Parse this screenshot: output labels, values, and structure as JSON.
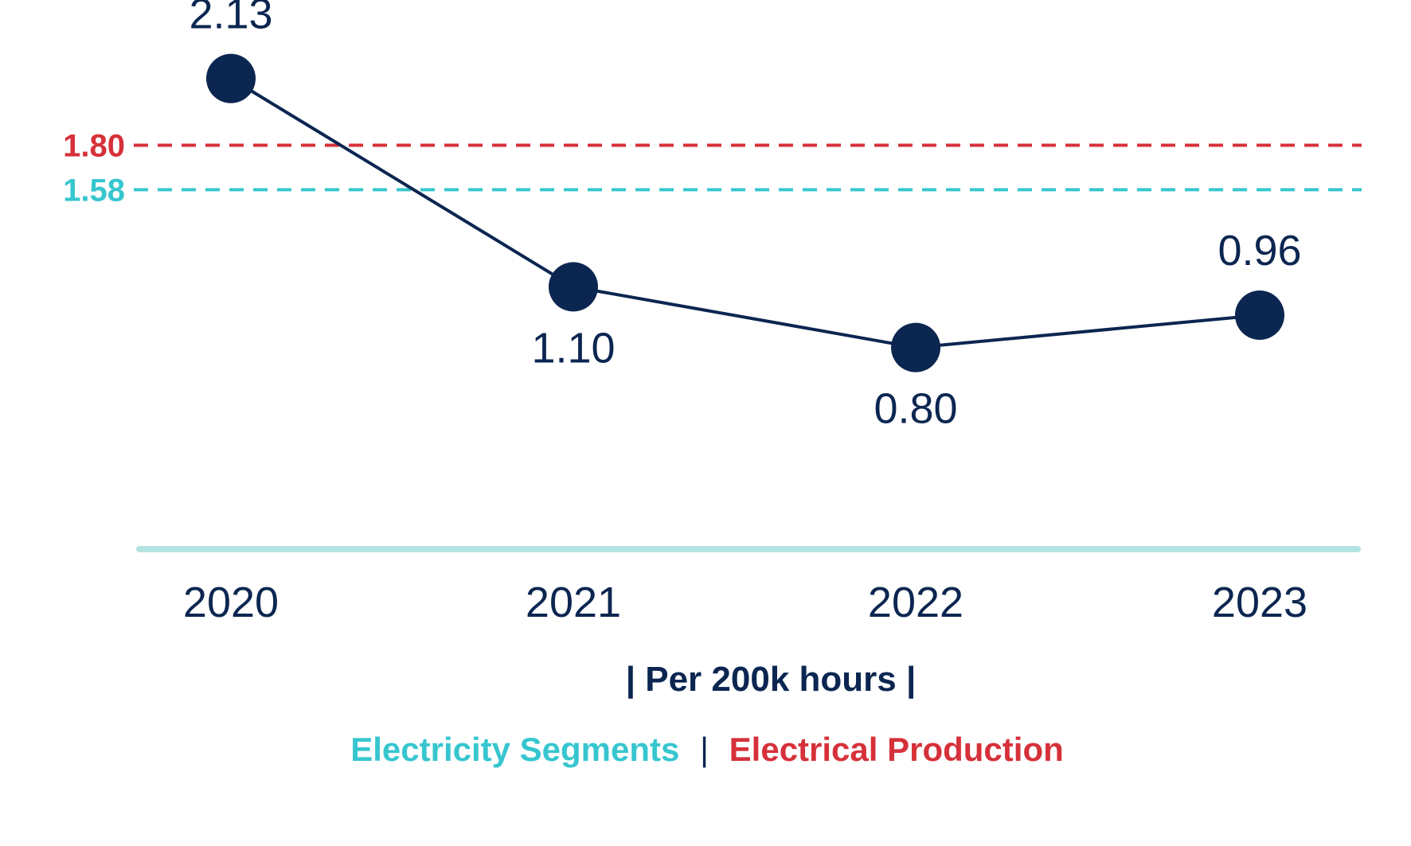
{
  "chart_data": {
    "type": "line",
    "categories": [
      "2020",
      "2021",
      "2022",
      "2023"
    ],
    "values": [
      2.13,
      1.1,
      0.8,
      0.96
    ],
    "value_labels": [
      "2.13",
      "1.10",
      "0.80",
      "0.96"
    ],
    "ylim": [
      0,
      2.4
    ],
    "grid": false,
    "reference_lines": [
      {
        "value": 1.8,
        "label": "1.80",
        "color": "#d6313a"
      },
      {
        "value": 1.58,
        "label": "1.58",
        "color": "#37c6cf"
      }
    ],
    "unit_label": "| Per 200k hours |",
    "legend": {
      "placement": "bottom",
      "items": [
        {
          "label": "Electricity Segments",
          "color": "#37c6cf"
        },
        {
          "label": "Electrical Production",
          "color": "#d6313a"
        }
      ],
      "separator": "|"
    },
    "colors": {
      "line": "#0b2650",
      "marker": "#0b2650",
      "baseline": "#b4e4e2",
      "text": "#0b2650"
    }
  }
}
